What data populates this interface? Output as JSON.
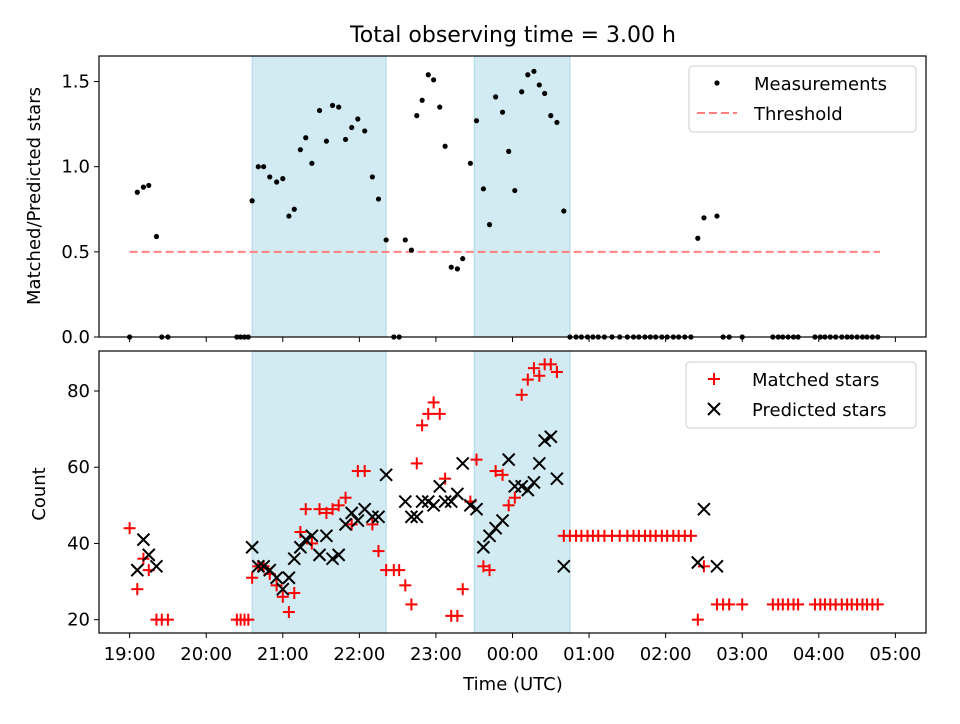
{
  "title": "Total observing time = 3.00 h",
  "colors": {
    "shade": "#add8e6",
    "measure": "#000000",
    "threshold": "#ff7f7f",
    "matched": "#ff0000",
    "predicted": "#000000"
  },
  "chart_data": [
    {
      "type": "scatter",
      "ylabel": "Matched/Predicted stars",
      "xlabel": "",
      "ylim": [
        0,
        1.65
      ],
      "yticks": [
        0.0,
        0.5,
        1.0,
        1.5
      ],
      "ytick_labels": [
        "0.0",
        "0.5",
        "1.0",
        "1.5"
      ],
      "legend": {
        "position": "top-right",
        "entries": [
          "Measurements",
          "Threshold"
        ]
      },
      "threshold": {
        "y": 0.5,
        "x_start": 19.0,
        "x_end": 28.8
      },
      "x": [
        19.0,
        19.1,
        19.18,
        19.25,
        19.35,
        19.42,
        19.5,
        20.4,
        20.45,
        20.5,
        20.55,
        20.6,
        20.68,
        20.75,
        20.83,
        20.92,
        21.0,
        21.08,
        21.15,
        21.23,
        21.3,
        21.38,
        21.48,
        21.57,
        21.65,
        21.73,
        21.82,
        21.9,
        21.98,
        22.07,
        22.17,
        22.25,
        22.35,
        22.45,
        22.52,
        22.6,
        22.68,
        22.75,
        22.82,
        22.9,
        22.97,
        23.05,
        23.12,
        23.2,
        23.28,
        23.35,
        23.45,
        23.53,
        23.62,
        23.7,
        23.78,
        23.87,
        23.95,
        24.03,
        24.12,
        24.2,
        24.28,
        24.35,
        24.42,
        24.5,
        24.58,
        24.67,
        24.75,
        24.83,
        24.9,
        24.98,
        25.05,
        25.12,
        25.2,
        25.3,
        25.4,
        25.5,
        25.58,
        25.65,
        25.73,
        25.8,
        25.87,
        25.95,
        26.02,
        26.1,
        26.17,
        26.25,
        26.33,
        26.42,
        26.5,
        26.67,
        26.75,
        26.83,
        27.0,
        27.4,
        27.47,
        27.53,
        27.6,
        27.67,
        27.73,
        27.95,
        28.02,
        28.08,
        28.15,
        28.22,
        28.3,
        28.37,
        28.43,
        28.5,
        28.57,
        28.63,
        28.7,
        28.77
      ],
      "y": [
        0.0,
        0.85,
        0.88,
        0.89,
        0.59,
        0.0,
        0.0,
        0.0,
        0.0,
        0.0,
        0.0,
        0.8,
        1.0,
        1.0,
        0.94,
        0.91,
        0.93,
        0.71,
        0.75,
        1.1,
        1.17,
        1.02,
        1.33,
        1.15,
        1.36,
        1.35,
        1.16,
        1.23,
        1.28,
        1.21,
        0.94,
        0.81,
        0.57,
        0.0,
        0.0,
        0.57,
        0.51,
        1.3,
        1.39,
        1.54,
        1.51,
        1.35,
        1.12,
        0.41,
        0.4,
        0.46,
        1.02,
        1.27,
        0.87,
        0.66,
        1.41,
        1.32,
        1.09,
        0.86,
        1.44,
        1.54,
        1.56,
        1.48,
        1.43,
        1.3,
        1.26,
        0.74,
        0.0,
        0.0,
        0.0,
        0.0,
        0.0,
        0.0,
        0.0,
        0.0,
        0.0,
        0.0,
        0.0,
        0.0,
        0.0,
        0.0,
        0.0,
        0.0,
        0.0,
        0.0,
        0.0,
        0.0,
        0.0,
        0.58,
        0.7,
        0.71,
        0.0,
        0.0,
        0.0,
        0.0,
        0.0,
        0.0,
        0.0,
        0.0,
        0.0,
        0.0,
        0.0,
        0.0,
        0.0,
        0.0,
        0.0,
        0.0,
        0.0,
        0.0,
        0.0,
        0.0,
        0.0,
        0.0
      ]
    },
    {
      "type": "scatter",
      "ylabel": "Count",
      "xlabel": "Time (UTC)",
      "xlim": [
        18.6,
        29.4
      ],
      "xticks": [
        19,
        20,
        21,
        22,
        23,
        24,
        25,
        26,
        27,
        28,
        29
      ],
      "xtick_labels": [
        "19:00",
        "20:00",
        "21:00",
        "22:00",
        "23:00",
        "00:00",
        "01:00",
        "02:00",
        "03:00",
        "04:00",
        "05:00"
      ],
      "ylim": [
        16.5,
        90.5
      ],
      "yticks": [
        20,
        40,
        60,
        80
      ],
      "ytick_labels": [
        "20",
        "40",
        "60",
        "80"
      ],
      "legend": {
        "position": "top-right",
        "entries": [
          "Matched stars",
          "Predicted stars"
        ]
      },
      "series": [
        {
          "name": "Matched stars",
          "x": [
            19.0,
            19.1,
            19.18,
            19.25,
            19.35,
            19.42,
            19.5,
            20.4,
            20.45,
            20.5,
            20.55,
            20.6,
            20.68,
            20.75,
            20.83,
            20.92,
            21.0,
            21.08,
            21.15,
            21.23,
            21.3,
            21.38,
            21.48,
            21.57,
            21.65,
            21.73,
            21.82,
            21.9,
            21.98,
            22.07,
            22.17,
            22.25,
            22.35,
            22.45,
            22.52,
            22.6,
            22.68,
            22.75,
            22.82,
            22.9,
            22.97,
            23.05,
            23.12,
            23.2,
            23.28,
            23.35,
            23.45,
            23.53,
            23.62,
            23.7,
            23.78,
            23.87,
            23.95,
            24.03,
            24.12,
            24.2,
            24.28,
            24.35,
            24.42,
            24.5,
            24.58,
            24.67,
            24.75,
            24.83,
            24.9,
            24.98,
            25.05,
            25.12,
            25.2,
            25.3,
            25.4,
            25.5,
            25.58,
            25.65,
            25.73,
            25.8,
            25.87,
            25.95,
            26.02,
            26.1,
            26.17,
            26.25,
            26.33,
            26.42,
            26.5,
            26.67,
            26.75,
            26.83,
            27.0,
            27.4,
            27.47,
            27.53,
            27.6,
            27.67,
            27.73,
            27.95,
            28.02,
            28.08,
            28.15,
            28.22,
            28.3,
            28.37,
            28.43,
            28.5,
            28.57,
            28.63,
            28.7,
            28.77
          ],
          "y": [
            44,
            28,
            36,
            33,
            20,
            20,
            20,
            20,
            20,
            20,
            20,
            31,
            34,
            34,
            32,
            29,
            26,
            22,
            27,
            43,
            49,
            40,
            49,
            48,
            49,
            50,
            52,
            45,
            59,
            59,
            45,
            38,
            33,
            33,
            33,
            29,
            24,
            61,
            71,
            74,
            77,
            74,
            57,
            21,
            21,
            28,
            51,
            62,
            34,
            33,
            59,
            58,
            50,
            52,
            79,
            83,
            86,
            84,
            87,
            87,
            85,
            42,
            42,
            42,
            42,
            42,
            42,
            42,
            42,
            42,
            42,
            42,
            42,
            42,
            42,
            42,
            42,
            42,
            42,
            42,
            42,
            42,
            42,
            20,
            34,
            24,
            24,
            24,
            24,
            24,
            24,
            24,
            24,
            24,
            24,
            24,
            24,
            24,
            24,
            24,
            24,
            24,
            24,
            24,
            24,
            24,
            24,
            24
          ]
        },
        {
          "name": "Predicted stars",
          "x": [
            19.1,
            19.18,
            19.25,
            19.35,
            20.6,
            20.68,
            20.75,
            20.83,
            20.92,
            21.0,
            21.08,
            21.15,
            21.23,
            21.3,
            21.38,
            21.48,
            21.57,
            21.65,
            21.73,
            21.82,
            21.9,
            21.98,
            22.07,
            22.17,
            22.25,
            22.35,
            22.6,
            22.68,
            22.75,
            22.82,
            22.9,
            22.97,
            23.05,
            23.12,
            23.2,
            23.28,
            23.35,
            23.45,
            23.53,
            23.62,
            23.7,
            23.78,
            23.87,
            23.95,
            24.03,
            24.12,
            24.2,
            24.28,
            24.35,
            24.42,
            24.5,
            24.58,
            24.67,
            26.42,
            26.5,
            26.67
          ],
          "y": [
            33,
            41,
            37,
            34,
            39,
            34,
            34,
            33,
            31,
            28,
            31,
            36,
            39,
            41,
            42,
            37,
            42,
            36,
            37,
            45,
            48,
            46,
            49,
            47,
            47,
            58,
            51,
            47,
            47,
            51,
            51,
            50,
            55,
            51,
            51,
            53,
            61,
            50,
            49,
            39,
            42,
            44,
            46,
            62,
            55,
            55,
            54,
            56,
            61,
            67,
            68,
            57,
            34,
            35,
            49,
            34
          ]
        }
      ]
    }
  ],
  "shaded_spans": [
    [
      20.6,
      22.35
    ],
    [
      23.5,
      24.75
    ]
  ]
}
